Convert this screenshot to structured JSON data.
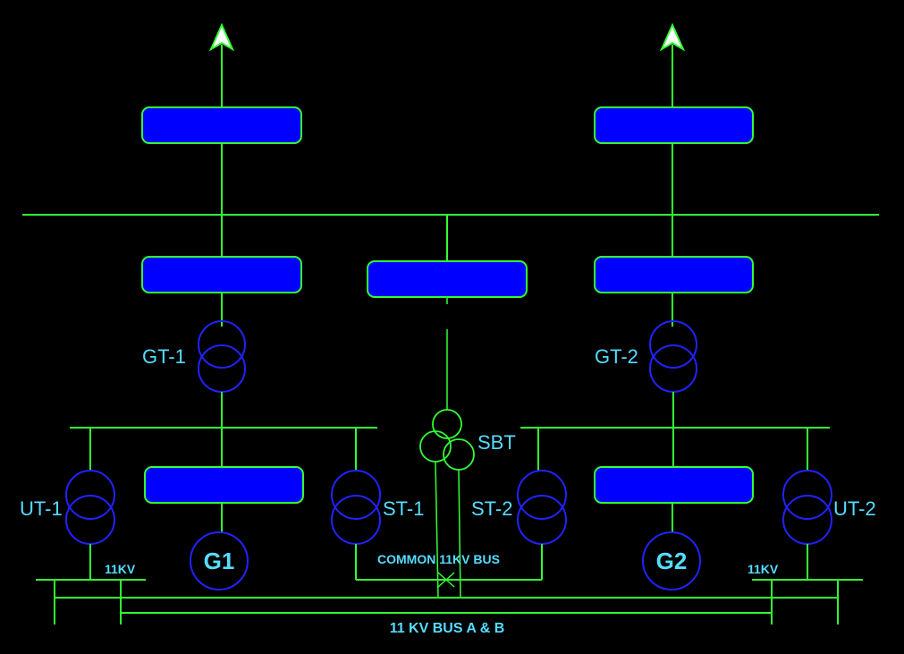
{
  "labels": {
    "gt1": "GT-1",
    "gt2": "GT-2",
    "sbt": "SBT",
    "ut1": "UT-1",
    "ut2": "UT-2",
    "st1": "ST-1",
    "st2": "ST-2",
    "g1": "G1",
    "g2": "G2",
    "kv_left": "11KV",
    "kv_right": "11KV",
    "common_bus": "COMMON 11KV BUS",
    "bus_ab": "11 KV BUS A & B"
  },
  "colors": {
    "background": "#000000",
    "line": "#33ff33",
    "block_fill": "#0000ff",
    "coil": "#2222ff",
    "text": "#55ddff"
  }
}
